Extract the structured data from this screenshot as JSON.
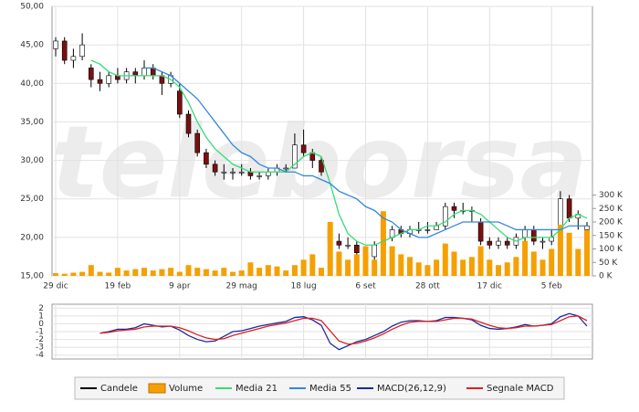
{
  "chart_data": [
    {
      "type": "candlestick",
      "watermark": "teleborsa",
      "categories": [
        "29 dic",
        null,
        null,
        null,
        null,
        null,
        null,
        "19 feb",
        null,
        null,
        null,
        null,
        null,
        null,
        "9 apr",
        null,
        null,
        null,
        null,
        null,
        null,
        "29 mag",
        null,
        null,
        null,
        null,
        null,
        null,
        "18 lug",
        null,
        null,
        null,
        null,
        null,
        null,
        "6 set",
        null,
        null,
        null,
        null,
        null,
        null,
        "28 ott",
        null,
        null,
        null,
        null,
        null,
        null,
        "17 dic",
        null,
        null,
        null,
        null,
        null,
        null,
        "5 feb",
        null,
        null,
        null,
        null
      ],
      "ylim": [
        15,
        50
      ],
      "yticks": [
        {
          "value": 15,
          "label": "15,00"
        },
        {
          "value": 20,
          "label": "20,00"
        },
        {
          "value": 25,
          "label": "25,00"
        },
        {
          "value": 30,
          "label": "30,00"
        },
        {
          "value": 35,
          "label": "35,00"
        },
        {
          "value": 40,
          "label": "40,00"
        },
        {
          "value": 45,
          "label": "45,00"
        },
        {
          "value": 50,
          "label": "50,00"
        }
      ],
      "y2lim": [
        0,
        1000000
      ],
      "y2ticks": [
        {
          "value": 0,
          "label": "0 K"
        },
        {
          "value": 50000,
          "label": "50 K"
        },
        {
          "value": 100000,
          "label": "100 K"
        },
        {
          "value": 150000,
          "label": "150 K"
        },
        {
          "value": 200000,
          "label": "200 K"
        },
        {
          "value": 250000,
          "label": "250 K"
        },
        {
          "value": 300000,
          "label": "300 K"
        }
      ],
      "grid": true,
      "series": [
        {
          "name": "Candele",
          "type": "candlestick",
          "color": "#000000",
          "up_fill": "#ffffff",
          "down_fill": "#7a1010",
          "values": [
            [
              44.5,
              46,
              43.5,
              45.5
            ],
            [
              45.5,
              46,
              42.5,
              43
            ],
            [
              43,
              44.5,
              42,
              43.5
            ],
            [
              43.5,
              46.5,
              43,
              45
            ],
            [
              42,
              42.5,
              39.5,
              40.5
            ],
            [
              40.5,
              41.5,
              39,
              40
            ],
            [
              40,
              41.5,
              39.5,
              41
            ],
            [
              41,
              42,
              40,
              40.5
            ],
            [
              40.5,
              42,
              40,
              41.5
            ],
            [
              41.5,
              42,
              40,
              41
            ],
            [
              41,
              43,
              40.5,
              42
            ],
            [
              42,
              42.5,
              40.5,
              41
            ],
            [
              41,
              41.5,
              38.5,
              40
            ],
            [
              40,
              41.5,
              39.5,
              41
            ],
            [
              39,
              40,
              35.5,
              36
            ],
            [
              36,
              36.5,
              33,
              33.5
            ],
            [
              33.5,
              34,
              30.5,
              31
            ],
            [
              31,
              31.5,
              29,
              29.5
            ],
            [
              29.5,
              30,
              28,
              28.5
            ],
            [
              28.5,
              29.5,
              27.5,
              28.5
            ],
            [
              28.5,
              29,
              27.5,
              28.5
            ],
            [
              28.5,
              29.5,
              28,
              28.5
            ],
            [
              28.5,
              29,
              27.5,
              28
            ],
            [
              28,
              28.5,
              27.5,
              28
            ],
            [
              28,
              29,
              27.5,
              28.5
            ],
            [
              28.5,
              29.5,
              28,
              29
            ],
            [
              29,
              29.5,
              28.5,
              29
            ],
            [
              29,
              33.5,
              29,
              32
            ],
            [
              32,
              34,
              30.5,
              31
            ],
            [
              31,
              31.5,
              29,
              30
            ],
            [
              30,
              30.5,
              28,
              28.5
            ],
            [
              21,
              21.5,
              19,
              19.5
            ],
            [
              19.5,
              20.5,
              18.5,
              19
            ],
            [
              19,
              20,
              18.5,
              19
            ],
            [
              19,
              19.5,
              17.5,
              18
            ],
            [
              18,
              18.5,
              17,
              17.5
            ],
            [
              17.5,
              19.5,
              17,
              19
            ],
            [
              19,
              20.5,
              18.5,
              20
            ],
            [
              20,
              21.5,
              19.5,
              21
            ],
            [
              21,
              21.5,
              20,
              20.5
            ],
            [
              20.5,
              21.5,
              20,
              21
            ],
            [
              21,
              22,
              20.5,
              21
            ],
            [
              21,
              22,
              20.5,
              21
            ],
            [
              21,
              22,
              21,
              21.5
            ],
            [
              21.5,
              24.5,
              21,
              24
            ],
            [
              24,
              24.5,
              22.5,
              23.5
            ],
            [
              23.5,
              24.5,
              23,
              23.5
            ],
            [
              23.5,
              24,
              22,
              23.5
            ],
            [
              22,
              22.5,
              19,
              19.5
            ],
            [
              19.5,
              20,
              18.5,
              19
            ],
            [
              19,
              20,
              18.5,
              19.5
            ],
            [
              19.5,
              20,
              18.5,
              19
            ],
            [
              19,
              20.5,
              18.5,
              20
            ],
            [
              20,
              21.5,
              19.5,
              21
            ],
            [
              21,
              21.5,
              19,
              19.5
            ],
            [
              19.5,
              20,
              18.5,
              19.5
            ],
            [
              19.5,
              21,
              19,
              20
            ],
            [
              21,
              26,
              20.5,
              25
            ],
            [
              25,
              25.5,
              22,
              22.5
            ],
            [
              22.5,
              23.5,
              21,
              23
            ],
            [
              21,
              22,
              18,
              21.5
            ]
          ]
        },
        {
          "name": "Volume",
          "type": "bar",
          "axis": "y2",
          "color": "#f5a000",
          "values": [
            10000,
            8000,
            12000,
            15000,
            40000,
            15000,
            12000,
            30000,
            20000,
            25000,
            30000,
            20000,
            25000,
            30000,
            15000,
            40000,
            30000,
            25000,
            20000,
            30000,
            15000,
            20000,
            50000,
            30000,
            40000,
            35000,
            20000,
            40000,
            60000,
            80000,
            30000,
            200000,
            90000,
            60000,
            80000,
            110000,
            60000,
            240000,
            110000,
            80000,
            70000,
            50000,
            40000,
            60000,
            120000,
            90000,
            60000,
            70000,
            110000,
            60000,
            40000,
            50000,
            70000,
            130000,
            90000,
            60000,
            100000,
            190000,
            160000,
            100000,
            170000
          ]
        },
        {
          "name": "Media 21",
          "type": "line",
          "color": "#33dd77",
          "values": [
            null,
            null,
            null,
            null,
            43,
            42.5,
            41.5,
            41,
            41,
            41,
            41,
            41,
            41,
            40.5,
            39.5,
            37.5,
            35,
            33,
            31.5,
            30.5,
            29.5,
            29,
            28.5,
            28.5,
            28.5,
            28.5,
            28.5,
            29.5,
            30.5,
            31,
            30.5,
            27,
            23,
            20.5,
            19.5,
            19,
            19,
            19.5,
            20,
            20.5,
            21,
            21,
            21.5,
            21.5,
            22,
            23,
            23.5,
            23.5,
            23,
            22,
            21,
            20,
            19.5,
            20,
            20,
            20,
            20,
            21,
            22.5,
            23,
            22.5
          ]
        },
        {
          "name": "Media 55",
          "type": "line",
          "color": "#3388dd",
          "values": [
            null,
            null,
            null,
            null,
            null,
            null,
            null,
            null,
            null,
            null,
            42,
            42,
            41.5,
            41,
            40,
            39,
            38,
            36.5,
            35,
            33.5,
            32,
            31,
            30.5,
            29.5,
            29,
            29,
            28.5,
            28.5,
            28,
            28,
            27.5,
            27,
            26,
            25.5,
            25,
            24,
            23.5,
            22.5,
            22,
            21,
            20.5,
            20,
            20,
            20.5,
            21,
            21.5,
            22,
            22,
            22,
            22,
            22,
            21.5,
            21,
            21,
            21,
            21,
            21,
            21,
            21.5,
            21.5,
            21.5
          ]
        }
      ]
    },
    {
      "type": "line",
      "ylim": [
        -4.5,
        2.5
      ],
      "yticks": [
        2,
        1,
        0,
        -1,
        -2,
        -3,
        -4
      ],
      "grid": true,
      "series": [
        {
          "name": "MACD(26,12,9)",
          "color": "#1a2aa0",
          "values": [
            null,
            null,
            null,
            null,
            null,
            -1.2,
            -1,
            -0.7,
            -0.7,
            -0.5,
            0,
            -0.2,
            -0.4,
            -0.3,
            -0.8,
            -1.5,
            -2,
            -2.3,
            -2.2,
            -1.6,
            -1,
            -0.9,
            -0.6,
            -0.3,
            -0.1,
            0.1,
            0.3,
            0.8,
            0.9,
            0.5,
            -0.2,
            -2.5,
            -3.3,
            -2.8,
            -2.3,
            -2,
            -1.5,
            -1,
            -0.3,
            0.2,
            0.4,
            0.4,
            0.3,
            0.4,
            0.8,
            0.8,
            0.7,
            0.5,
            -0.2,
            -0.6,
            -0.7,
            -0.6,
            -0.4,
            -0.1,
            -0.3,
            -0.2,
            0,
            0.9,
            1.3,
            1,
            -0.3
          ]
        },
        {
          "name": "Segnale MACD",
          "color": "#e02020",
          "values": [
            null,
            null,
            null,
            null,
            null,
            -1.2,
            -1.1,
            -0.9,
            -0.8,
            -0.7,
            -0.4,
            -0.3,
            -0.3,
            -0.3,
            -0.5,
            -0.9,
            -1.4,
            -1.8,
            -2,
            -1.9,
            -1.5,
            -1.2,
            -0.9,
            -0.6,
            -0.3,
            -0.1,
            0.1,
            0.4,
            0.7,
            0.7,
            0.4,
            -0.9,
            -2.2,
            -2.6,
            -2.5,
            -2.2,
            -1.8,
            -1.3,
            -0.7,
            -0.2,
            0.2,
            0.3,
            0.3,
            0.3,
            0.5,
            0.7,
            0.7,
            0.6,
            0.2,
            -0.2,
            -0.5,
            -0.6,
            -0.5,
            -0.3,
            -0.3,
            -0.2,
            -0.1,
            0.4,
            0.9,
            1,
            0.4
          ]
        }
      ]
    }
  ]
}
